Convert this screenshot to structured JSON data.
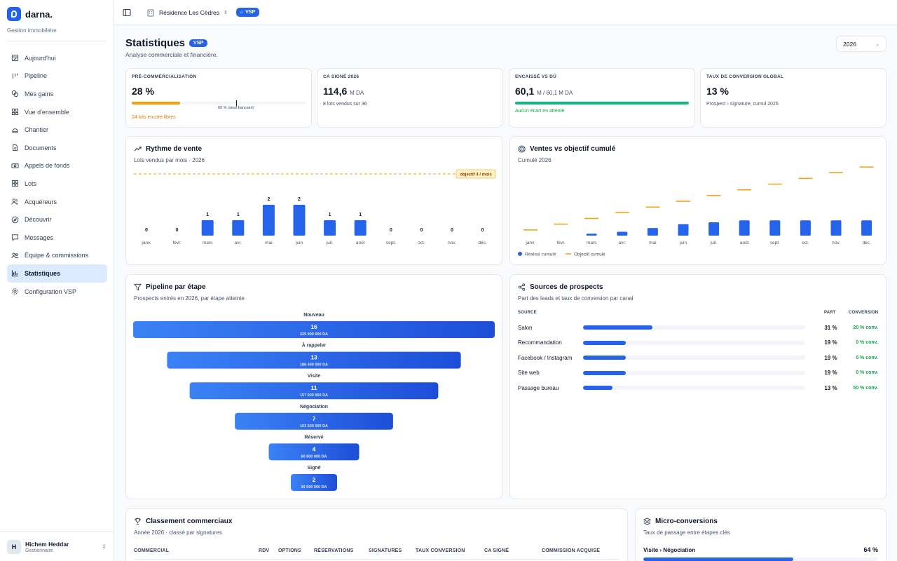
{
  "app": {
    "name": "darna.",
    "tagline": "Gestion immobilière"
  },
  "sidebar": {
    "items": [
      {
        "label": "Aujourd'hui",
        "icon": "calendar-check-icon"
      },
      {
        "label": "Pipeline",
        "icon": "pipeline-icon"
      },
      {
        "label": "Mes gains",
        "icon": "coins-icon"
      },
      {
        "label": "Vue d'ensemble",
        "icon": "grid-icon"
      },
      {
        "label": "Chantier",
        "icon": "hard-hat-icon"
      },
      {
        "label": "Documents",
        "icon": "document-icon"
      },
      {
        "label": "Appels de fonds",
        "icon": "banknote-icon"
      },
      {
        "label": "Lots",
        "icon": "lots-icon"
      },
      {
        "label": "Acquéreurs",
        "icon": "users-icon"
      },
      {
        "label": "Découvrir",
        "icon": "compass-icon"
      },
      {
        "label": "Messages",
        "icon": "message-icon"
      },
      {
        "label": "Équipe & commissions",
        "icon": "team-icon"
      },
      {
        "label": "Statistiques",
        "icon": "bar-chart-icon",
        "active": true
      },
      {
        "label": "Configuration VSP",
        "icon": "gear-icon"
      }
    ]
  },
  "user": {
    "initial": "H",
    "name": "Hichem Heddar",
    "role": "Gestionnaire"
  },
  "topbar": {
    "project": "Résidence Les Cèdres",
    "badge": "VSP"
  },
  "page": {
    "title": "Statistiques",
    "badge": "VSP",
    "subtitle": "Analyse commerciale et financière.",
    "year": "2026"
  },
  "kpis": [
    {
      "label": "PRÉ-COMMERCIALISATION",
      "value": "28 %",
      "unit": "",
      "progress": 0.28,
      "threshold": 0.6,
      "threshold_label": "60 % (seuil bancaire)",
      "note": "24 lots encore libres",
      "note_color": "#d97706",
      "bar_color": "#f59e0b"
    },
    {
      "label": "CA SIGNÉ 2026",
      "value": "114,6",
      "unit": "M DA",
      "note": "8 lots vendus sur 36",
      "note_color": "#475569"
    },
    {
      "label": "ENCAISSÉ VS DÛ",
      "value": "60,1",
      "unit": "M / 60,1 M DA",
      "progress": 1.0,
      "note": "Aucun écart en attente",
      "note_color": "#16a34a",
      "bar_color": "#10b981"
    },
    {
      "label": "TAUX DE CONVERSION GLOBAL",
      "value": "13 %",
      "unit": "",
      "note": "Prospect › signature, cumul 2026",
      "note_color": "#475569"
    }
  ],
  "rythme": {
    "title": "Rythme de vente",
    "subtitle": "Lots vendus par mois · 2026",
    "target_label": "objectif 4 / mois",
    "chart_data": {
      "type": "bar",
      "categories": [
        "janv.",
        "févr.",
        "mars",
        "avr.",
        "mai",
        "juin",
        "juil.",
        "août",
        "sept.",
        "oct.",
        "nov.",
        "déc."
      ],
      "values": [
        0,
        0,
        1,
        1,
        2,
        2,
        1,
        1,
        0,
        0,
        0,
        0
      ],
      "target": 4
    }
  },
  "cumul": {
    "title": "Ventes vs objectif cumulé",
    "subtitle": "Cumulé 2026",
    "chart_data": {
      "type": "bar",
      "categories": [
        "janv.",
        "févr.",
        "mars",
        "avr.",
        "mai",
        "juin",
        "juil.",
        "août",
        "sept.",
        "oct.",
        "nov.",
        "déc."
      ],
      "series": [
        {
          "name": "Réalisé cumulé",
          "values": [
            0,
            0,
            1,
            2,
            4,
            6,
            7,
            8,
            8,
            8,
            8,
            8
          ],
          "color": "#2563eb"
        },
        {
          "name": "Objectif cumulé",
          "values": [
            3,
            6,
            9,
            12,
            15,
            18,
            21,
            24,
            27,
            30,
            33,
            36
          ],
          "color": "#f59e0b"
        }
      ]
    }
  },
  "funnel": {
    "title": "Pipeline par étape",
    "subtitle": "Prospects entrés en 2026, par étape atteinte",
    "stages": [
      {
        "label": "Nouveau",
        "count": "16",
        "amount": "225 900 000 DA",
        "value": 16
      },
      {
        "label": "À rappeler",
        "count": "13",
        "amount": "186 400 000 DA",
        "value": 13
      },
      {
        "label": "Visite",
        "count": "11",
        "amount": "157 900 000 DA",
        "value": 11
      },
      {
        "label": "Négociation",
        "count": "7",
        "amount": "103 600 000 DA",
        "value": 7
      },
      {
        "label": "Réservé",
        "count": "4",
        "amount": "60 800 000 DA",
        "value": 4
      },
      {
        "label": "Signé",
        "count": "2",
        "amount": "30 000 000 DA",
        "value": 2
      }
    ]
  },
  "sources": {
    "title": "Sources de prospects",
    "subtitle": "Part des leads et taux de conversion par canal",
    "headers": {
      "source": "SOURCE",
      "part": "PART",
      "conversion": "CONVERSION"
    },
    "rows": [
      {
        "name": "Salon",
        "part": "31 %",
        "share": 0.31,
        "conversion": "20 % conv."
      },
      {
        "name": "Recommandation",
        "part": "19 %",
        "share": 0.19,
        "conversion": "0 % conv."
      },
      {
        "name": "Facebook / Instagram",
        "part": "19 %",
        "share": 0.19,
        "conversion": "0 % conv."
      },
      {
        "name": "Site web",
        "part": "19 %",
        "share": 0.19,
        "conversion": "0 % conv."
      },
      {
        "name": "Passage bureau",
        "part": "13 %",
        "share": 0.13,
        "conversion": "50 % conv."
      }
    ]
  },
  "classement": {
    "title": "Classement commerciaux",
    "subtitle": "Année 2026 · classé par signatures",
    "headers": [
      "COMMERCIAL",
      "RDV",
      "OPTIONS",
      "RÉSERVATIONS",
      "SIGNATURES",
      "TAUX CONVERSION",
      "CA SIGNÉ",
      "COMMISSION ACQUISE"
    ]
  },
  "micro": {
    "title": "Micro-conversions",
    "subtitle": "Taux de passage entre étapes clés",
    "items": [
      {
        "label": "Visite › Négociation",
        "value": "64 %",
        "rate": 0.64
      }
    ]
  }
}
